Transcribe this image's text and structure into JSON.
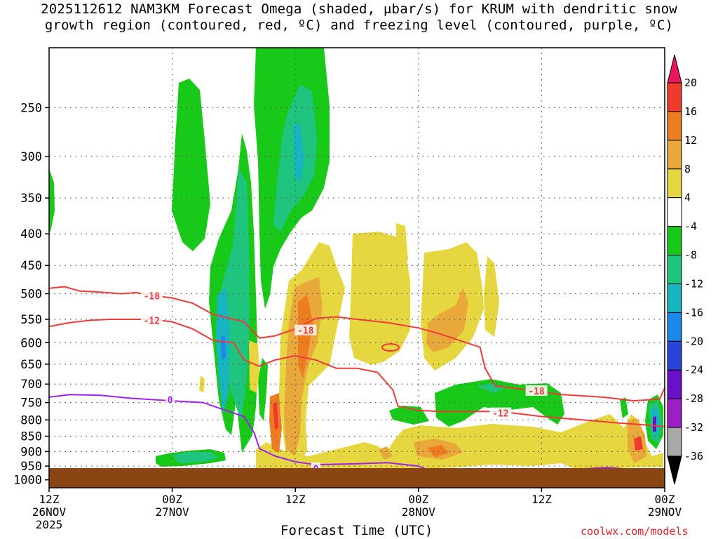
{
  "title_line1": "2025112612 NAM3KM Forecast Omega (shaded, μbar/s) for KRUM with dendritic snow",
  "title_line2": "growth region (contoured, red, ºC) and freezing level (contoured, purple, ºC)",
  "xlabel": "Forecast Time (UTC)",
  "credit": "coolwx.com/models",
  "chart_data": {
    "type": "heatmap",
    "title": "2025112612 NAM3KM Forecast Omega (shaded, μbar/s) for KRUM with dendritic snow growth region (contoured, red, ºC) and freezing level (contoured, purple, ºC)",
    "xlabel": "Forecast Time (UTC)",
    "ylabel": "",
    "x_ticks": [
      {
        "hour": 0,
        "l1": "12Z",
        "l2": "26NOV",
        "l3": "2025"
      },
      {
        "hour": 12,
        "l1": "00Z",
        "l2": "27NOV",
        "l3": ""
      },
      {
        "hour": 24,
        "l1": "12Z",
        "l2": "",
        "l3": ""
      },
      {
        "hour": 36,
        "l1": "00Z",
        "l2": "28NOV",
        "l3": ""
      },
      {
        "hour": 48,
        "l1": "12Z",
        "l2": "",
        "l3": ""
      },
      {
        "hour": 60,
        "l1": "00Z",
        "l2": "29NOV",
        "l3": ""
      }
    ],
    "xlim": [
      0,
      60
    ],
    "y_ticks": [
      250,
      300,
      350,
      400,
      450,
      500,
      550,
      600,
      650,
      700,
      750,
      800,
      850,
      900,
      950,
      1000
    ],
    "ylim": [
      1030,
      200
    ],
    "y_scale": "log",
    "grid": true,
    "colorbar": {
      "labels": [
        "20",
        "16",
        "12",
        "8",
        "4",
        "-4",
        "-8",
        "-12",
        "-16",
        "-20",
        "-24",
        "-28",
        "-32",
        "-36"
      ],
      "colors": [
        "#e8185a",
        "#ef3b2c",
        "#ee7d22",
        "#e9a83a",
        "#e6d740",
        "#ffffff",
        "#19c919",
        "#1fc47e",
        "#17b5bf",
        "#1d88e9",
        "#2845d8",
        "#6a10c9",
        "#9c1fc4",
        "#a8a8a8",
        "#000000"
      ]
    },
    "series": [
      {
        "name": "-18",
        "color": "#f03a3a",
        "points": [
          [
            0,
            490
          ],
          [
            1.5,
            487
          ],
          [
            3,
            495
          ],
          [
            5,
            497
          ],
          [
            7,
            500
          ],
          [
            8.5,
            498
          ],
          [
            10,
            503
          ],
          [
            12,
            508
          ],
          [
            14,
            518
          ],
          [
            16,
            540
          ],
          [
            19,
            555
          ],
          [
            20.5,
            590
          ],
          [
            22,
            585
          ],
          [
            24,
            570
          ],
          [
            26,
            548
          ],
          [
            28,
            545
          ],
          [
            30,
            550
          ],
          [
            33,
            557
          ],
          [
            36,
            568
          ],
          [
            38,
            580
          ],
          [
            40,
            595
          ],
          [
            42,
            610
          ],
          [
            42.5,
            660
          ],
          [
            43.5,
            705
          ],
          [
            46,
            713
          ],
          [
            50,
            728
          ],
          [
            54,
            735
          ],
          [
            57,
            745
          ],
          [
            59.5,
            740
          ],
          [
            60,
            710
          ]
        ]
      },
      {
        "name": "-12",
        "color": "#f03a3a",
        "points": [
          [
            0,
            565
          ],
          [
            2,
            557
          ],
          [
            4,
            552
          ],
          [
            6,
            550
          ],
          [
            10,
            550
          ],
          [
            12,
            555
          ],
          [
            14,
            570
          ],
          [
            16,
            595
          ],
          [
            18,
            600
          ],
          [
            19,
            640
          ],
          [
            20.5,
            655
          ],
          [
            22,
            640
          ],
          [
            24,
            630
          ],
          [
            26,
            640
          ],
          [
            28,
            660
          ],
          [
            30,
            660
          ],
          [
            32,
            670
          ],
          [
            33.5,
            715
          ],
          [
            34,
            760
          ],
          [
            36,
            772
          ],
          [
            38,
            775
          ],
          [
            40,
            775
          ],
          [
            44,
            775
          ],
          [
            48,
            790
          ],
          [
            52,
            800
          ],
          [
            55,
            808
          ],
          [
            58,
            815
          ],
          [
            60,
            820
          ]
        ]
      },
      {
        "name": "0",
        "color": "#a020f0",
        "points": [
          [
            0,
            735
          ],
          [
            2,
            728
          ],
          [
            5,
            730
          ],
          [
            8,
            738
          ],
          [
            12,
            745
          ],
          [
            15,
            750
          ],
          [
            17,
            770
          ],
          [
            19,
            790
          ],
          [
            20,
            840
          ],
          [
            20.5,
            890
          ],
          [
            22,
            915
          ],
          [
            24,
            935
          ],
          [
            26,
            945
          ],
          [
            30,
            942
          ],
          [
            33,
            938
          ],
          [
            36,
            950
          ],
          [
            37,
            965
          ]
        ]
      },
      {
        "name": "0b",
        "color": "#a020f0",
        "points": [
          [
            52,
            960
          ],
          [
            54.5,
            955
          ],
          [
            56,
            960
          ]
        ]
      }
    ]
  }
}
